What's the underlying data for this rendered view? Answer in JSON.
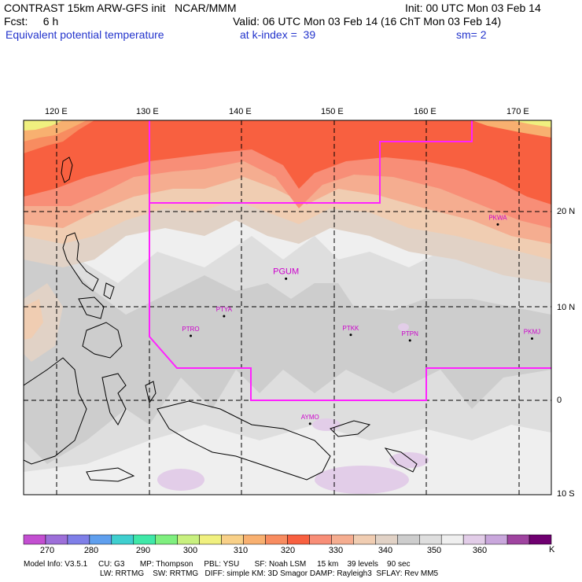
{
  "header": {
    "line1_left": "CONTRAST 15km ARW-GFS init   NCAR/MMM",
    "line1_right": "Init: 00 UTC Mon 03 Feb 14",
    "line2_left": "Fcst:     6 h",
    "line2_right": "Valid: 06 UTC Mon 03 Feb 14 (16 ChT Mon 03 Feb 14)",
    "line3_left": "Equivalent potential temperature",
    "line3_mid": "at k-index =  39",
    "line3_right": "sm= 2"
  },
  "map": {
    "lon_ticks": [
      "120 E",
      "130 E",
      "140 E",
      "150 E",
      "160 E",
      "170 E"
    ],
    "lat_ticks": [
      "20 N",
      "10 N",
      "0",
      "10 S"
    ],
    "stations": [
      {
        "id": "PGUM",
        "lon": 144.8,
        "lat": 13.5
      },
      {
        "id": "PTYA",
        "lon": 138.1,
        "lat": 9.5
      },
      {
        "id": "PTRO",
        "lon": 134.5,
        "lat": 7.4
      },
      {
        "id": "PTKK",
        "lon": 151.8,
        "lat": 7.5
      },
      {
        "id": "PTPN",
        "lon": 158.2,
        "lat": 6.9
      },
      {
        "id": "PKWA",
        "lon": 167.7,
        "lat": 19.3
      },
      {
        "id": "PKMJ",
        "lon": 171.4,
        "lat": 7.1
      },
      {
        "id": "AYMO",
        "lon": 147.4,
        "lat": -2.0
      }
    ],
    "colors": {
      "region_boundary": "#ff22ff",
      "station_label": "#cc00cc",
      "grid": "#000000"
    }
  },
  "colorbar": {
    "labels": [
      "270",
      "280",
      "290",
      "300",
      "310",
      "320",
      "330",
      "340",
      "350",
      "360"
    ],
    "unit": "K",
    "colors": [
      "#c34fd1",
      "#9d6fd9",
      "#7f7fe8",
      "#5f9fee",
      "#3fcfcf",
      "#3fe8a8",
      "#7fef7f",
      "#c8f07f",
      "#f0f07f",
      "#f8d088",
      "#f8b070",
      "#f88c60",
      "#f86040",
      "#f88e77",
      "#f5ad90",
      "#f0cdb2",
      "#e1d2c6",
      "#cdcdcd",
      "#dedede",
      "#efefef",
      "#e2cde8",
      "#c9a7dc",
      "#9f44a0",
      "#6f0070"
    ]
  },
  "model_info": {
    "line1": "Model Info: V3.5.1     CU: G3       MP: Thompson     PBL: YSU       SF: Noah LSM     15 km    39 levels    90 sec",
    "line2": "LW: RRTMG    SW: RRTMG   DIFF: simple KM: 3D Smagor DAMP: Rayleigh3  SFLAY: Rev MM5"
  }
}
